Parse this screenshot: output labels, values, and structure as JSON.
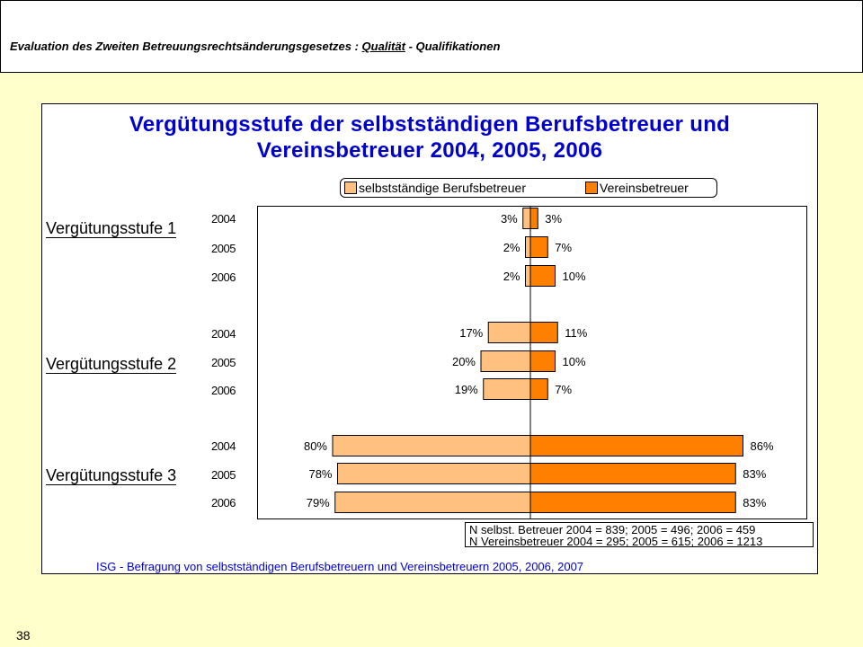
{
  "header": {
    "title_prefix": "Evaluation des Zweiten Betreuungsrechtsänderungsgesetzes : ",
    "title_underlined": "Qualität",
    "title_suffix": " - Qualifikationen"
  },
  "page_number": "38",
  "colors": {
    "selbststaendige": "#ffc080",
    "verein": "#ff8000",
    "title": "#0000cc",
    "background": "#ffffcc"
  },
  "chart_data": {
    "type": "bar",
    "orientation": "horizontal-diverging",
    "title_line1": "Vergütungsstufe der selbstständigen Berufsbetreuer und",
    "title_line2": "Vereinsbetreuer 2004, 2005, 2006",
    "legend": {
      "placement": "top",
      "entries": [
        "selbstständige Berufsbetreuer",
        "Vereinsbetreuer"
      ]
    },
    "groups": [
      {
        "label": "Vergütungsstufe 1",
        "years": [
          "2004",
          "2005",
          "2006"
        ],
        "selbststaendige": [
          3,
          2,
          2
        ],
        "verein": [
          3,
          7,
          10
        ]
      },
      {
        "label": "Vergütungsstufe 2",
        "years": [
          "2004",
          "2005",
          "2006"
        ],
        "selbststaendige": [
          17,
          20,
          19
        ],
        "verein": [
          11,
          10,
          7
        ]
      },
      {
        "label": "Vergütungsstufe 3",
        "years": [
          "2004",
          "2005",
          "2006"
        ],
        "selbststaendige": [
          80,
          78,
          79
        ],
        "verein": [
          86,
          83,
          83
        ]
      }
    ],
    "series": [
      {
        "name": "selbstständige Berufsbetreuer",
        "direction": "left"
      },
      {
        "name": "Vereinsbetreuer",
        "direction": "right"
      }
    ],
    "value_suffix": "%",
    "note_line1": "N selbst. Betreuer 2004 = 839; 2005 = 496; 2006 = 459",
    "note_line2": "N Vereinsbetreuer 2004 = 295; 2005 = 615; 2006 = 1213",
    "source": "ISG - Befragung von selbstständigen Berufsbetreuern und Vereinsbetreuern 2005, 2006, 2007"
  }
}
